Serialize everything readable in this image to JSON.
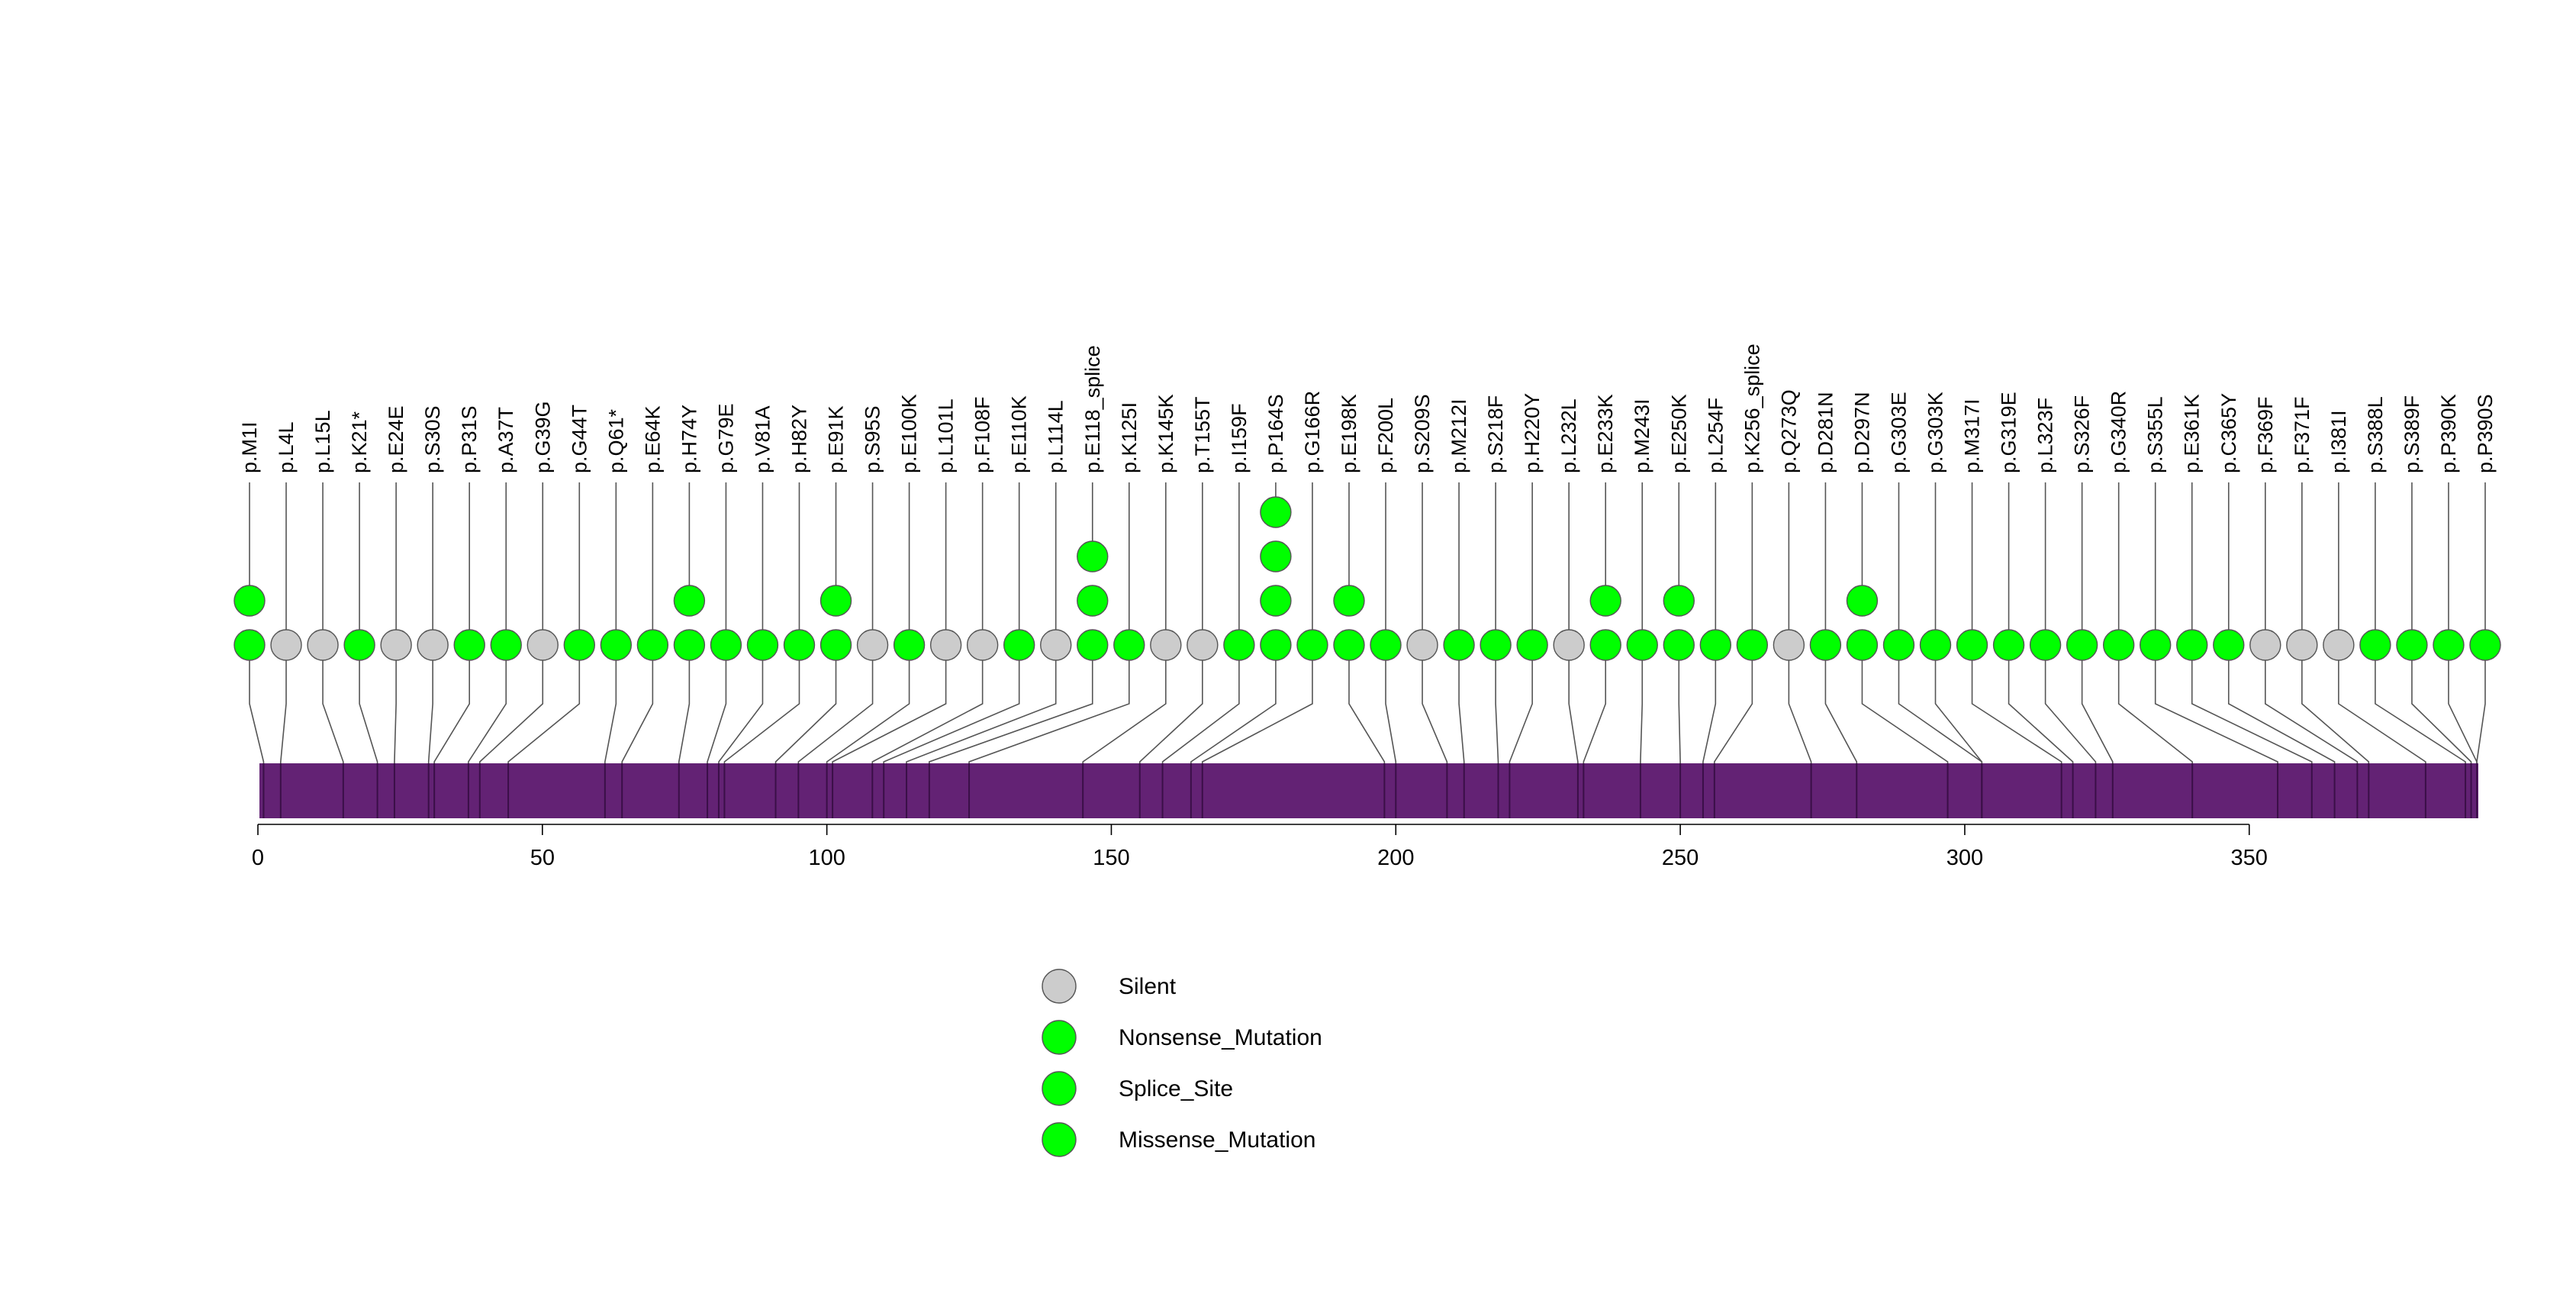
{
  "chart_data": {
    "type": "lollipop",
    "title": "",
    "xlabel": "",
    "ylabel": "",
    "xlim": [
      0,
      390
    ],
    "xticks": [
      0,
      50,
      100,
      150,
      200,
      250,
      300,
      350
    ],
    "protein_length": 390,
    "colors": {
      "Silent": "#cccccc",
      "Nonsense_Mutation": "#00ff00",
      "Splice_Site": "#00ff00",
      "Missense_Mutation": "#00ff00",
      "domain": "#632274",
      "stem": "#555555"
    },
    "mutations": [
      {
        "label": "p.M1I",
        "pos": 1,
        "count": 2,
        "type": "Missense_Mutation"
      },
      {
        "label": "p.L4L",
        "pos": 4,
        "count": 1,
        "type": "Silent"
      },
      {
        "label": "p.L15L",
        "pos": 15,
        "count": 1,
        "type": "Silent"
      },
      {
        "label": "p.K21*",
        "pos": 21,
        "count": 1,
        "type": "Nonsense_Mutation"
      },
      {
        "label": "p.E24E",
        "pos": 24,
        "count": 1,
        "type": "Silent"
      },
      {
        "label": "p.S30S",
        "pos": 30,
        "count": 1,
        "type": "Silent"
      },
      {
        "label": "p.P31S",
        "pos": 31,
        "count": 1,
        "type": "Missense_Mutation"
      },
      {
        "label": "p.A37T",
        "pos": 37,
        "count": 1,
        "type": "Missense_Mutation"
      },
      {
        "label": "p.G39G",
        "pos": 39,
        "count": 1,
        "type": "Silent"
      },
      {
        "label": "p.G44T",
        "pos": 44,
        "count": 1,
        "type": "Missense_Mutation"
      },
      {
        "label": "p.Q61*",
        "pos": 61,
        "count": 1,
        "type": "Nonsense_Mutation"
      },
      {
        "label": "p.E64K",
        "pos": 64,
        "count": 1,
        "type": "Missense_Mutation"
      },
      {
        "label": "p.H74Y",
        "pos": 74,
        "count": 2,
        "type": "Missense_Mutation"
      },
      {
        "label": "p.G79E",
        "pos": 79,
        "count": 1,
        "type": "Missense_Mutation"
      },
      {
        "label": "p.V81A",
        "pos": 81,
        "count": 1,
        "type": "Missense_Mutation"
      },
      {
        "label": "p.H82Y",
        "pos": 82,
        "count": 1,
        "type": "Missense_Mutation"
      },
      {
        "label": "p.E91K",
        "pos": 91,
        "count": 2,
        "type": "Missense_Mutation"
      },
      {
        "label": "p.S95S",
        "pos": 95,
        "count": 1,
        "type": "Silent"
      },
      {
        "label": "p.E100K",
        "pos": 100,
        "count": 1,
        "type": "Missense_Mutation"
      },
      {
        "label": "p.L101L",
        "pos": 101,
        "count": 1,
        "type": "Silent"
      },
      {
        "label": "p.F108F",
        "pos": 108,
        "count": 1,
        "type": "Silent"
      },
      {
        "label": "p.E110K",
        "pos": 110,
        "count": 1,
        "type": "Missense_Mutation"
      },
      {
        "label": "p.L114L",
        "pos": 114,
        "count": 1,
        "type": "Silent"
      },
      {
        "label": "p.E118_splice",
        "pos": 118,
        "count": 3,
        "type": "Splice_Site"
      },
      {
        "label": "p.K125I",
        "pos": 125,
        "count": 1,
        "type": "Missense_Mutation"
      },
      {
        "label": "p.K145K",
        "pos": 145,
        "count": 1,
        "type": "Silent"
      },
      {
        "label": "p.T155T",
        "pos": 155,
        "count": 1,
        "type": "Silent"
      },
      {
        "label": "p.I159F",
        "pos": 159,
        "count": 1,
        "type": "Missense_Mutation"
      },
      {
        "label": "p.P164S",
        "pos": 164,
        "count": 4,
        "type": "Missense_Mutation"
      },
      {
        "label": "p.G166R",
        "pos": 166,
        "count": 1,
        "type": "Missense_Mutation"
      },
      {
        "label": "p.E198K",
        "pos": 198,
        "count": 2,
        "type": "Missense_Mutation"
      },
      {
        "label": "p.F200L",
        "pos": 200,
        "count": 1,
        "type": "Missense_Mutation"
      },
      {
        "label": "p.S209S",
        "pos": 209,
        "count": 1,
        "type": "Silent"
      },
      {
        "label": "p.M212I",
        "pos": 212,
        "count": 1,
        "type": "Missense_Mutation"
      },
      {
        "label": "p.S218F",
        "pos": 218,
        "count": 1,
        "type": "Missense_Mutation"
      },
      {
        "label": "p.H220Y",
        "pos": 220,
        "count": 1,
        "type": "Missense_Mutation"
      },
      {
        "label": "p.L232L",
        "pos": 232,
        "count": 1,
        "type": "Silent"
      },
      {
        "label": "p.E233K",
        "pos": 233,
        "count": 2,
        "type": "Missense_Mutation"
      },
      {
        "label": "p.M243I",
        "pos": 243,
        "count": 1,
        "type": "Missense_Mutation"
      },
      {
        "label": "p.E250K",
        "pos": 250,
        "count": 2,
        "type": "Missense_Mutation"
      },
      {
        "label": "p.L254F",
        "pos": 254,
        "count": 1,
        "type": "Missense_Mutation"
      },
      {
        "label": "p.K256_splice",
        "pos": 256,
        "count": 1,
        "type": "Splice_Site"
      },
      {
        "label": "p.Q273Q",
        "pos": 273,
        "count": 1,
        "type": "Silent"
      },
      {
        "label": "p.D281N",
        "pos": 281,
        "count": 1,
        "type": "Missense_Mutation"
      },
      {
        "label": "p.D297N",
        "pos": 297,
        "count": 2,
        "type": "Missense_Mutation"
      },
      {
        "label": "p.G303E",
        "pos": 303,
        "count": 1,
        "type": "Missense_Mutation"
      },
      {
        "label": "p.G303K",
        "pos": 303,
        "count": 1,
        "type": "Missense_Mutation"
      },
      {
        "label": "p.M317I",
        "pos": 317,
        "count": 1,
        "type": "Missense_Mutation"
      },
      {
        "label": "p.G319E",
        "pos": 319,
        "count": 1,
        "type": "Missense_Mutation"
      },
      {
        "label": "p.L323F",
        "pos": 323,
        "count": 1,
        "type": "Missense_Mutation"
      },
      {
        "label": "p.S326F",
        "pos": 326,
        "count": 1,
        "type": "Missense_Mutation"
      },
      {
        "label": "p.G340R",
        "pos": 340,
        "count": 1,
        "type": "Missense_Mutation"
      },
      {
        "label": "p.S355L",
        "pos": 355,
        "count": 1,
        "type": "Missense_Mutation"
      },
      {
        "label": "p.E361K",
        "pos": 361,
        "count": 1,
        "type": "Missense_Mutation"
      },
      {
        "label": "p.C365Y",
        "pos": 365,
        "count": 1,
        "type": "Missense_Mutation"
      },
      {
        "label": "p.F369F",
        "pos": 369,
        "count": 1,
        "type": "Silent"
      },
      {
        "label": "p.F371F",
        "pos": 371,
        "count": 1,
        "type": "Silent"
      },
      {
        "label": "p.I381I",
        "pos": 381,
        "count": 1,
        "type": "Silent"
      },
      {
        "label": "p.S388L",
        "pos": 388,
        "count": 1,
        "type": "Missense_Mutation"
      },
      {
        "label": "p.S389F",
        "pos": 389,
        "count": 1,
        "type": "Missense_Mutation"
      },
      {
        "label": "p.P390K",
        "pos": 390,
        "count": 1,
        "type": "Missense_Mutation"
      },
      {
        "label": "p.P390S",
        "pos": 390,
        "count": 1,
        "type": "Missense_Mutation"
      }
    ],
    "legend": [
      {
        "label": "Silent",
        "color": "#cccccc"
      },
      {
        "label": "Nonsense_Mutation",
        "color": "#00ff00"
      },
      {
        "label": "Splice_Site",
        "color": "#00ff00"
      },
      {
        "label": "Missense_Mutation",
        "color": "#00ff00"
      }
    ],
    "legend_position": "bottom-center"
  }
}
